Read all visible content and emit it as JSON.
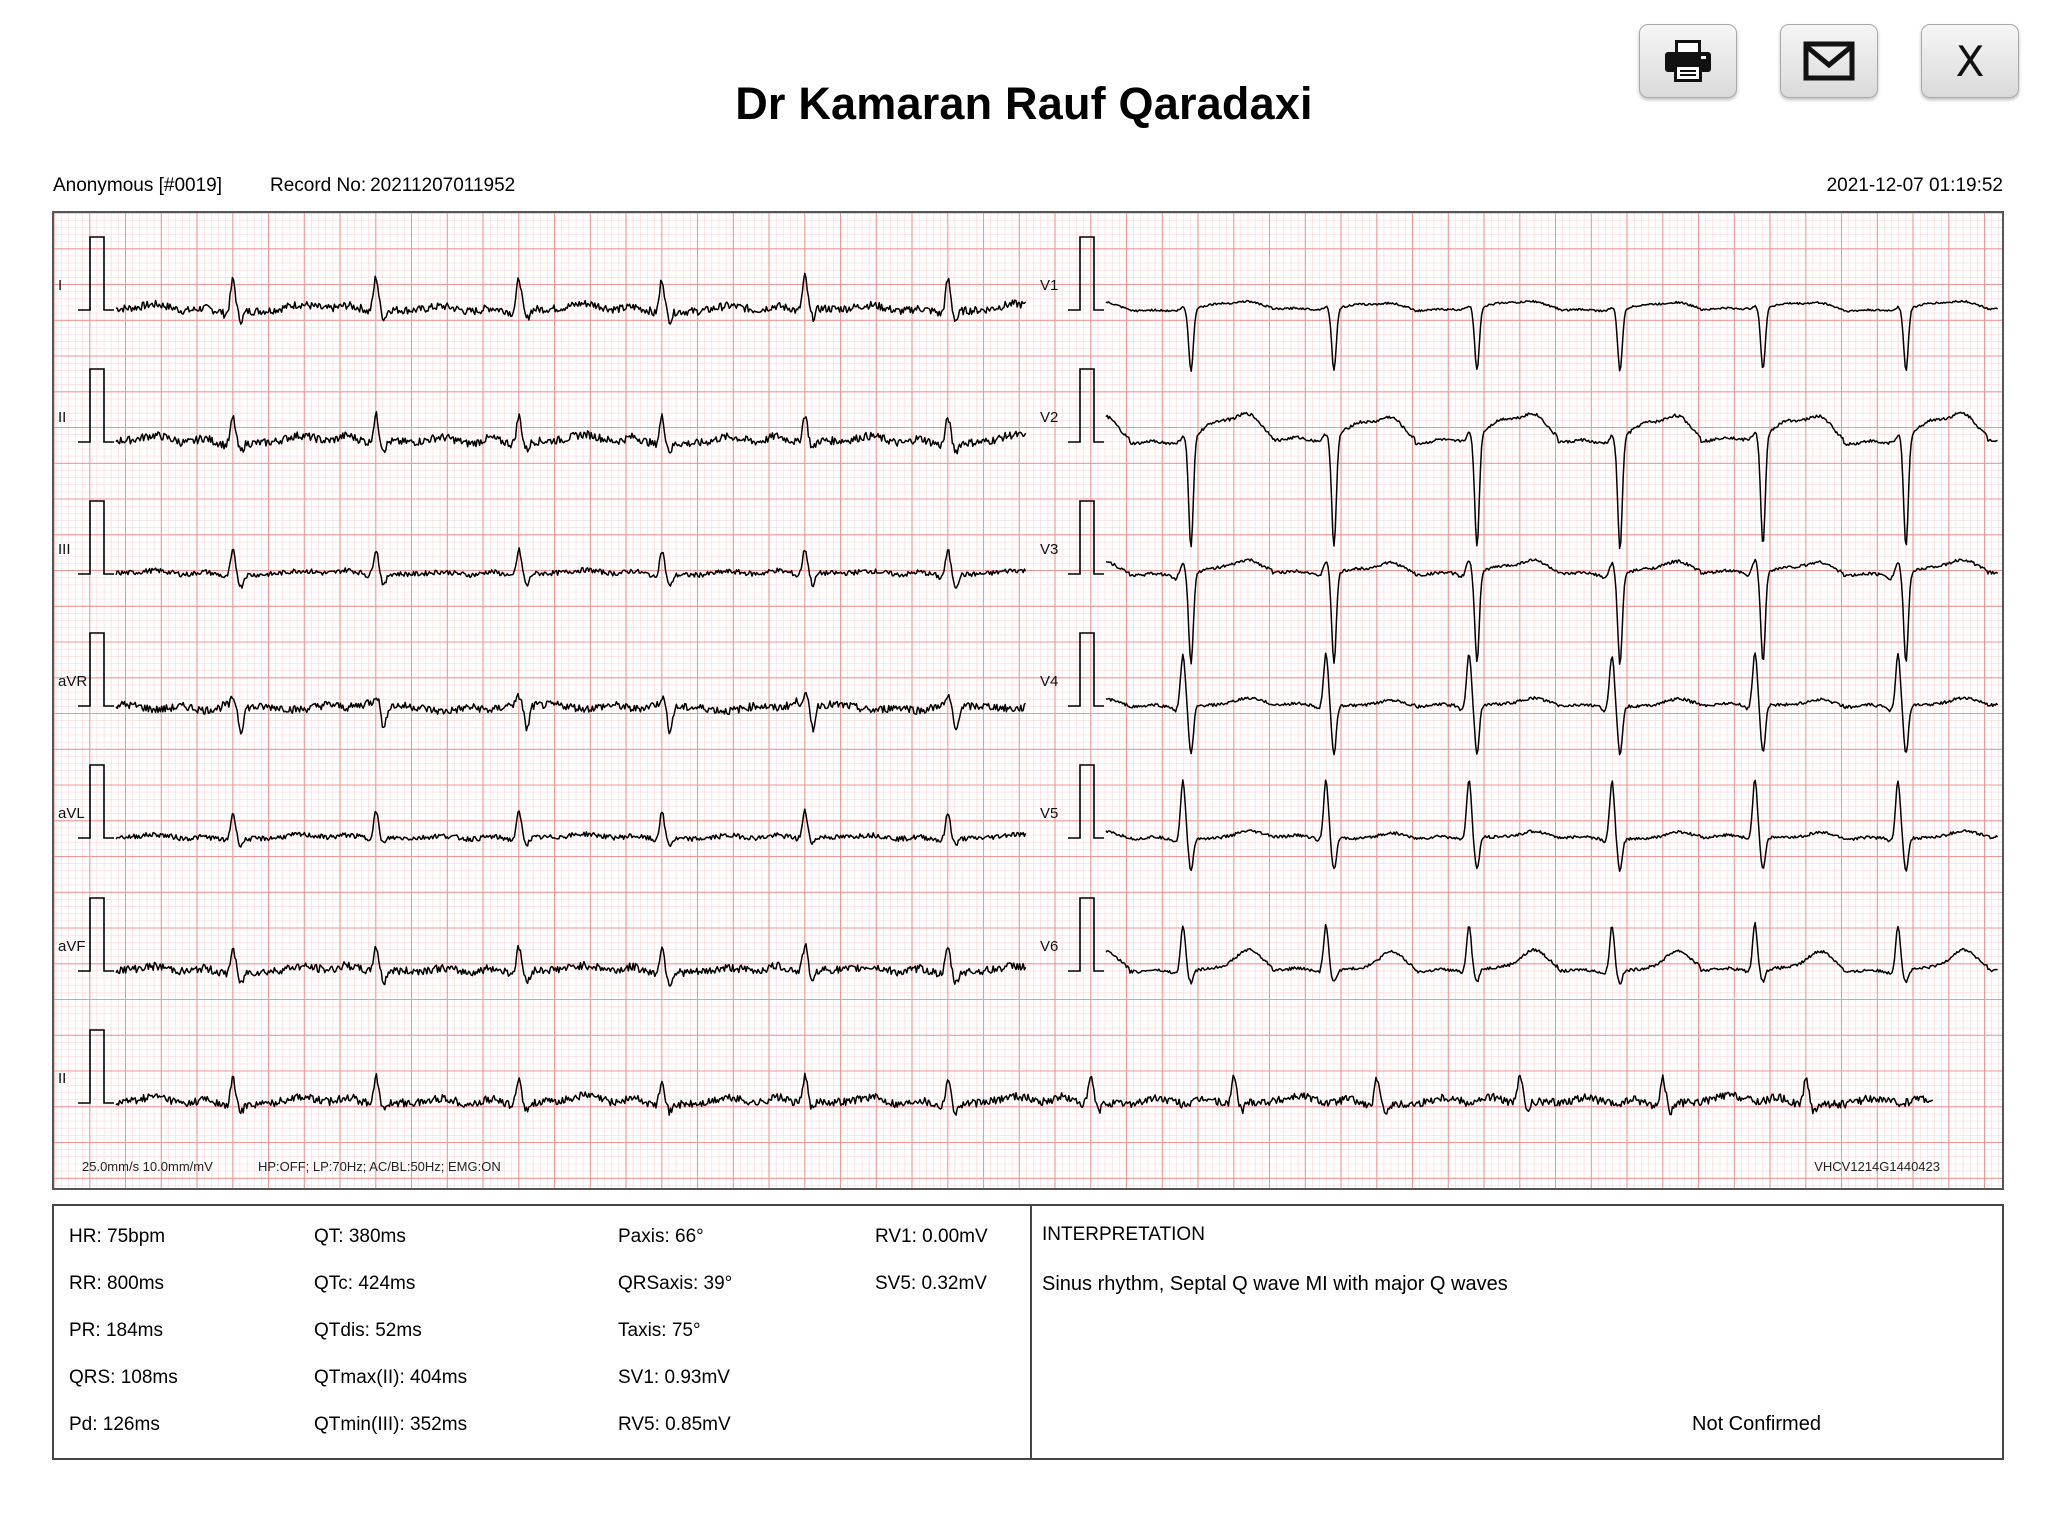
{
  "header": {
    "title": "Dr Kamaran Rauf Qaradaxi"
  },
  "toolbar": [
    {
      "name": "print-button",
      "icon": "printer-icon"
    },
    {
      "name": "email-button",
      "icon": "envelope-icon"
    },
    {
      "name": "close-button",
      "icon": "close-icon",
      "label": "X"
    }
  ],
  "record": {
    "patient": "Anonymous [#0019]",
    "record_label": "Record No:",
    "record_no": "20211207011952",
    "datetime": "2021-12-07 01:19:52"
  },
  "ecg": {
    "left_leads": [
      "I",
      "II",
      "III",
      "aVR",
      "aVL",
      "aVF"
    ],
    "right_leads": [
      "V1",
      "V2",
      "V3",
      "V4",
      "V5",
      "V6"
    ],
    "rhythm_lead": "II",
    "settings": "25.0mm/s  10.0mm/mV",
    "filters": "HP:OFF; LP:70Hz; AC/BL:50Hz; EMG:ON",
    "device_id": "VHCV1214G1440423",
    "grid_color": "#f08a8a",
    "trace_color": "#000000"
  },
  "measurements": {
    "col1": [
      "HR: 75bpm",
      "RR: 800ms",
      "PR: 184ms",
      "QRS: 108ms",
      "Pd: 126ms"
    ],
    "col2": [
      "QT: 380ms",
      "QTc: 424ms",
      "QTdis: 52ms",
      "QTmax(II): 404ms",
      "QTmin(III): 352ms"
    ],
    "col3": [
      "Paxis: 66°",
      "QRSaxis: 39°",
      "Taxis: 75°",
      "SV1: 0.93mV",
      "RV5: 0.85mV"
    ],
    "col4": [
      "RV1: 0.00mV",
      "SV5: 0.32mV"
    ]
  },
  "interpretation": {
    "title": "INTERPRETATION",
    "text": "Sinus rhythm, Septal Q wave MI with major Q waves",
    "status": "Not Confirmed"
  }
}
